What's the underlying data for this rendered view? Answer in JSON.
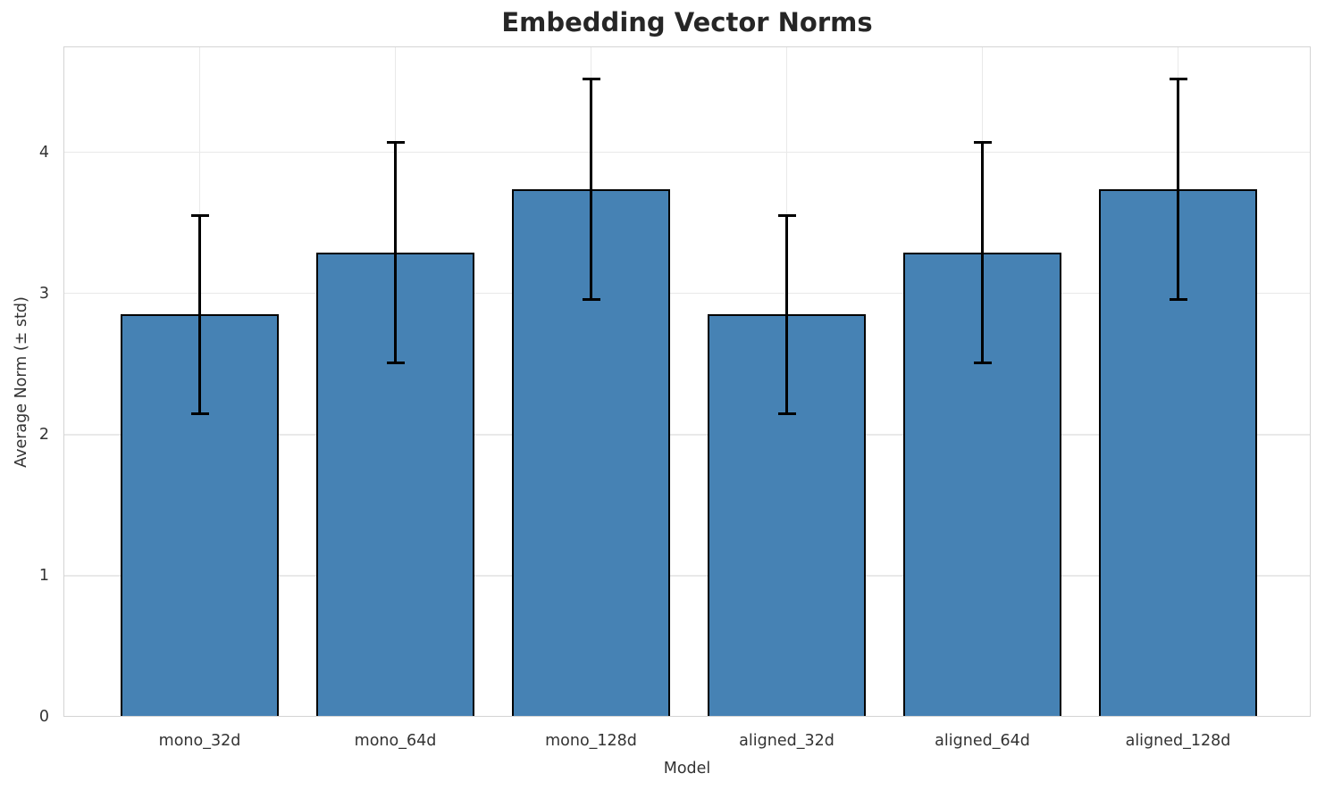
{
  "chart_data": {
    "type": "bar",
    "title": "Embedding Vector Norms",
    "xlabel": "Model",
    "ylabel": "Average Norm (± std)",
    "categories": [
      "mono_32d",
      "mono_64d",
      "mono_128d",
      "aligned_32d",
      "aligned_64d",
      "aligned_128d"
    ],
    "series": [
      {
        "name": "Average Norm",
        "values": [
          2.85,
          3.29,
          3.74,
          2.85,
          3.29,
          3.74
        ],
        "errors": [
          0.7,
          0.78,
          0.78,
          0.7,
          0.78,
          0.78
        ]
      }
    ],
    "ylim": [
      0,
      4.75
    ],
    "yticks": [
      0,
      1,
      2,
      3,
      4
    ],
    "grid": true,
    "legend_position": "none",
    "colors": {
      "bar_fill": "#4682B4",
      "bar_edge": "#000000",
      "error_bar": "#000000",
      "grid_line": "#e9e9e9",
      "spine": "#d4d4d4",
      "title_text": "#262626",
      "tick_text": "#333333"
    }
  }
}
